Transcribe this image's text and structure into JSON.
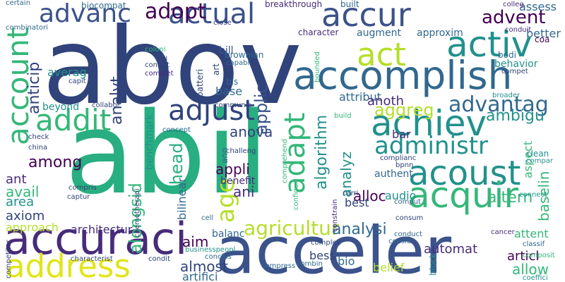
{
  "palette": {
    "dark_blue": "#30437a",
    "blue": "#3b528b",
    "teal": "#21918c",
    "green": "#35b779",
    "sea": "#28ae80",
    "lime": "#b5de2b",
    "yellow": "#e2e418",
    "purple": "#440154",
    "violet": "#472c7a",
    "slate": "#31688e",
    "grey": "#888888"
  },
  "words": [
    {
      "text": "abov",
      "color": "dark_blue",
      "weight": "large"
    },
    {
      "text": "abil",
      "color": "sea",
      "weight": "large"
    },
    {
      "text": "acceler",
      "color": "blue",
      "weight": "large"
    },
    {
      "text": "accomplish",
      "color": "slate",
      "weight": "large"
    },
    {
      "text": "accuraci",
      "color": "violet",
      "weight": "large"
    },
    {
      "text": "accur",
      "color": "blue",
      "weight": "medium"
    },
    {
      "text": "actual",
      "color": "blue",
      "weight": "medium"
    },
    {
      "text": "activ",
      "color": "teal",
      "weight": "medium"
    },
    {
      "text": "act",
      "color": "lime",
      "weight": "medium"
    },
    {
      "text": "account",
      "color": "green",
      "weight": "medium"
    },
    {
      "text": "addit",
      "color": "green",
      "weight": "medium"
    },
    {
      "text": "address",
      "color": "yellow",
      "weight": "medium"
    },
    {
      "text": "achiev",
      "color": "teal",
      "weight": "medium"
    },
    {
      "text": "acoust",
      "color": "teal",
      "weight": "medium"
    },
    {
      "text": "acquir",
      "color": "green",
      "weight": "medium"
    },
    {
      "text": "adjust",
      "color": "dark_blue",
      "weight": "medium"
    },
    {
      "text": "advanc",
      "color": "blue",
      "weight": "medium"
    },
    {
      "text": "adopt",
      "color": "purple",
      "weight": "medium"
    },
    {
      "text": "adapt",
      "color": "green",
      "weight": "medium"
    },
    {
      "text": "administr",
      "color": "teal",
      "weight": "medium"
    },
    {
      "text": "advantag",
      "color": "slate",
      "weight": "medium"
    },
    {
      "text": "aggreg",
      "color": "lime",
      "weight": "medium"
    },
    {
      "text": "agricultur",
      "color": "lime",
      "weight": "medium"
    },
    {
      "text": "anticip",
      "color": "dark_blue",
      "weight": "small"
    },
    {
      "text": "advent",
      "color": "purple",
      "weight": "small"
    },
    {
      "text": "age",
      "color": "lime",
      "weight": "medium"
    },
    {
      "text": "analyt",
      "color": "dark_blue",
      "weight": "small"
    },
    {
      "text": "applic",
      "color": "blue",
      "weight": "small"
    },
    {
      "text": "ambigu",
      "color": "teal",
      "weight": "small"
    },
    {
      "text": "algorithm",
      "color": "teal",
      "weight": "small"
    },
    {
      "text": "among",
      "color": "purple",
      "weight": "small"
    },
    {
      "text": "ahead",
      "color": "sea",
      "weight": "small"
    },
    {
      "text": "anova",
      "color": "dark_blue",
      "weight": "small"
    },
    {
      "text": "appli",
      "color": "purple",
      "weight": "small"
    },
    {
      "text": "alongsid",
      "color": "green",
      "weight": "small"
    },
    {
      "text": "altern",
      "color": "green",
      "weight": "small"
    },
    {
      "text": "analysi",
      "color": "slate",
      "weight": "small"
    },
    {
      "text": "almost",
      "color": "dark_blue",
      "weight": "small"
    },
    {
      "text": "allow",
      "color": "green",
      "weight": "small"
    },
    {
      "text": "aim",
      "color": "purple",
      "weight": "small"
    },
    {
      "text": "ani",
      "color": "violet",
      "weight": "small"
    },
    {
      "text": "alloc",
      "color": "purple",
      "weight": "small"
    },
    {
      "text": "analyz",
      "color": "teal",
      "weight": "small"
    },
    {
      "text": "architectur",
      "color": "violet",
      "weight": "small"
    },
    {
      "text": "ant",
      "color": "violet",
      "weight": "small"
    },
    {
      "text": "avail",
      "color": "green",
      "weight": "small"
    },
    {
      "text": "area",
      "color": "teal",
      "weight": "small"
    },
    {
      "text": "axiom",
      "color": "dark_blue",
      "weight": "small"
    },
    {
      "text": "approach",
      "color": "lime",
      "weight": "small"
    },
    {
      "text": "artifici",
      "color": "slate",
      "weight": "small"
    },
    {
      "text": "articl",
      "color": "purple",
      "weight": "small"
    },
    {
      "text": "attent",
      "color": "green",
      "weight": "small"
    },
    {
      "text": "baselin",
      "color": "green",
      "weight": "small"
    },
    {
      "text": "aspect",
      "color": "green",
      "weight": "small"
    },
    {
      "text": "assess",
      "color": "slate",
      "weight": "small"
    },
    {
      "text": "better",
      "color": "slate",
      "weight": "small"
    },
    {
      "text": "augment",
      "color": "slate",
      "weight": "small"
    },
    {
      "text": "approxim",
      "color": "slate",
      "weight": "small"
    },
    {
      "text": "attribut",
      "color": "slate",
      "weight": "small"
    },
    {
      "text": "anoth",
      "color": "violet",
      "weight": "small"
    },
    {
      "text": "beyond",
      "color": "teal",
      "weight": "small"
    },
    {
      "text": "averag",
      "color": "teal",
      "weight": "small"
    },
    {
      "text": "base",
      "color": "slate",
      "weight": "small"
    },
    {
      "text": "bill",
      "color": "blue",
      "weight": "small"
    },
    {
      "text": "benchmark",
      "color": "teal",
      "weight": "small"
    },
    {
      "text": "bilinear",
      "color": "slate",
      "weight": "small"
    },
    {
      "text": "benefit",
      "color": "violet",
      "weight": "small"
    },
    {
      "text": "balanc",
      "color": "slate",
      "weight": "small"
    },
    {
      "text": "best",
      "color": "dark_blue",
      "weight": "small"
    },
    {
      "text": "bess",
      "color": "dark_blue",
      "weight": "small"
    },
    {
      "text": "bio",
      "color": "slate",
      "weight": "small"
    },
    {
      "text": "belief",
      "color": "lime",
      "weight": "small"
    },
    {
      "text": "automat",
      "color": "violet",
      "weight": "small"
    },
    {
      "text": "audio",
      "color": "teal",
      "weight": "small"
    },
    {
      "text": "authent",
      "color": "slate",
      "weight": "small"
    },
    {
      "text": "bar",
      "color": "violet",
      "weight": "small"
    },
    {
      "text": "behavior",
      "color": "teal",
      "weight": "small"
    },
    {
      "text": "biocompat",
      "color": "slate",
      "weight": "small"
    },
    {
      "text": "breakthrough",
      "color": "violet",
      "weight": "small"
    },
    {
      "text": "built",
      "color": "slate",
      "weight": "small"
    },
    {
      "text": "colleg",
      "color": "violet",
      "weight": "small"
    },
    {
      "text": "conduit",
      "color": "violet",
      "weight": "small"
    },
    {
      "text": "coa",
      "color": "purple",
      "weight": "small"
    },
    {
      "text": "character",
      "color": "violet",
      "weight": "small"
    },
    {
      "text": "bodi",
      "color": "slate",
      "weight": "small"
    },
    {
      "text": "compet",
      "color": "dark_blue",
      "weight": "small"
    },
    {
      "text": "broader",
      "color": "teal",
      "weight": "small"
    },
    {
      "text": "clean",
      "color": "teal",
      "weight": "small"
    },
    {
      "text": "compar",
      "color": "teal",
      "weight": "small"
    },
    {
      "text": "connect",
      "color": "teal",
      "weight": "small"
    },
    {
      "text": "cancer",
      "color": "violet",
      "weight": "small"
    },
    {
      "text": "classif",
      "color": "slate",
      "weight": "small"
    },
    {
      "text": "composit",
      "color": "green",
      "weight": "small"
    },
    {
      "text": "coeffici",
      "color": "teal",
      "weight": "small"
    },
    {
      "text": "comput",
      "color": "slate",
      "weight": "small"
    },
    {
      "text": "consum",
      "color": "dark_blue",
      "weight": "small"
    },
    {
      "text": "conduct",
      "color": "slate",
      "weight": "small"
    },
    {
      "text": "consid",
      "color": "slate",
      "weight": "small"
    },
    {
      "text": "bpnn",
      "color": "dark_blue",
      "weight": "small"
    },
    {
      "text": "complianc",
      "color": "dark_blue",
      "weight": "small"
    },
    {
      "text": "carri",
      "color": "dark_blue",
      "weight": "small"
    },
    {
      "text": "constrain",
      "color": "violet",
      "weight": "small"
    },
    {
      "text": "block",
      "color": "teal",
      "weight": "small"
    },
    {
      "text": "combin",
      "color": "slate",
      "weight": "small"
    },
    {
      "text": "complex",
      "color": "dark_blue",
      "weight": "small"
    },
    {
      "text": "compress",
      "color": "slate",
      "weight": "small"
    },
    {
      "text": "conclus",
      "color": "slate",
      "weight": "small"
    },
    {
      "text": "condit",
      "color": "dark_blue",
      "weight": "small"
    },
    {
      "text": "characterist",
      "color": "dark_blue",
      "weight": "small"
    },
    {
      "text": "competitor",
      "color": "dark_blue",
      "weight": "small"
    },
    {
      "text": "businesspeopl",
      "color": "teal",
      "weight": "small"
    },
    {
      "text": "cell",
      "color": "slate",
      "weight": "small"
    },
    {
      "text": "chemotherapi",
      "color": "dark_blue",
      "weight": "small"
    },
    {
      "text": "challeng",
      "color": "dark_blue",
      "weight": "small"
    },
    {
      "text": "compris",
      "color": "dark_blue",
      "weight": "small"
    },
    {
      "text": "captur",
      "color": "dark_blue",
      "weight": "small"
    },
    {
      "text": "china",
      "color": "dark_blue",
      "weight": "small"
    },
    {
      "text": "check",
      "color": "dark_blue",
      "weight": "small"
    },
    {
      "text": "concept",
      "color": "slate",
      "weight": "small"
    },
    {
      "text": "communic",
      "color": "dark_blue",
      "weight": "small"
    },
    {
      "text": "collabor",
      "color": "dark_blue",
      "weight": "small"
    },
    {
      "text": "capit",
      "color": "dark_blue",
      "weight": "small"
    },
    {
      "text": "complet",
      "color": "violet",
      "weight": "small"
    },
    {
      "text": "consist",
      "color": "dark_blue",
      "weight": "small"
    },
    {
      "text": "call",
      "color": "dark_blue",
      "weight": "small"
    },
    {
      "text": "coloni",
      "color": "green",
      "weight": "small"
    },
    {
      "text": "brownian",
      "color": "slate",
      "weight": "small"
    },
    {
      "text": "capabl",
      "color": "slate",
      "weight": "small"
    },
    {
      "text": "bls",
      "color": "slate",
      "weight": "small"
    },
    {
      "text": "close",
      "color": "dark_blue",
      "weight": "small"
    },
    {
      "text": "combinatori",
      "color": "slate",
      "weight": "small"
    },
    {
      "text": "certain",
      "color": "slate",
      "weight": "small"
    },
    {
      "text": "batteri",
      "color": "dark_blue",
      "weight": "small"
    },
    {
      "text": "art",
      "color": "dark_blue",
      "weight": "small"
    },
    {
      "text": "bounded",
      "color": "green",
      "weight": "small"
    },
    {
      "text": "build",
      "color": "green",
      "weight": "small"
    },
    {
      "text": "comprehend",
      "color": "green",
      "weight": "small"
    },
    {
      "text": "configur",
      "color": "green",
      "weight": "small"
    },
    {
      "text": "ann",
      "color": "slate",
      "weight": "small"
    }
  ]
}
